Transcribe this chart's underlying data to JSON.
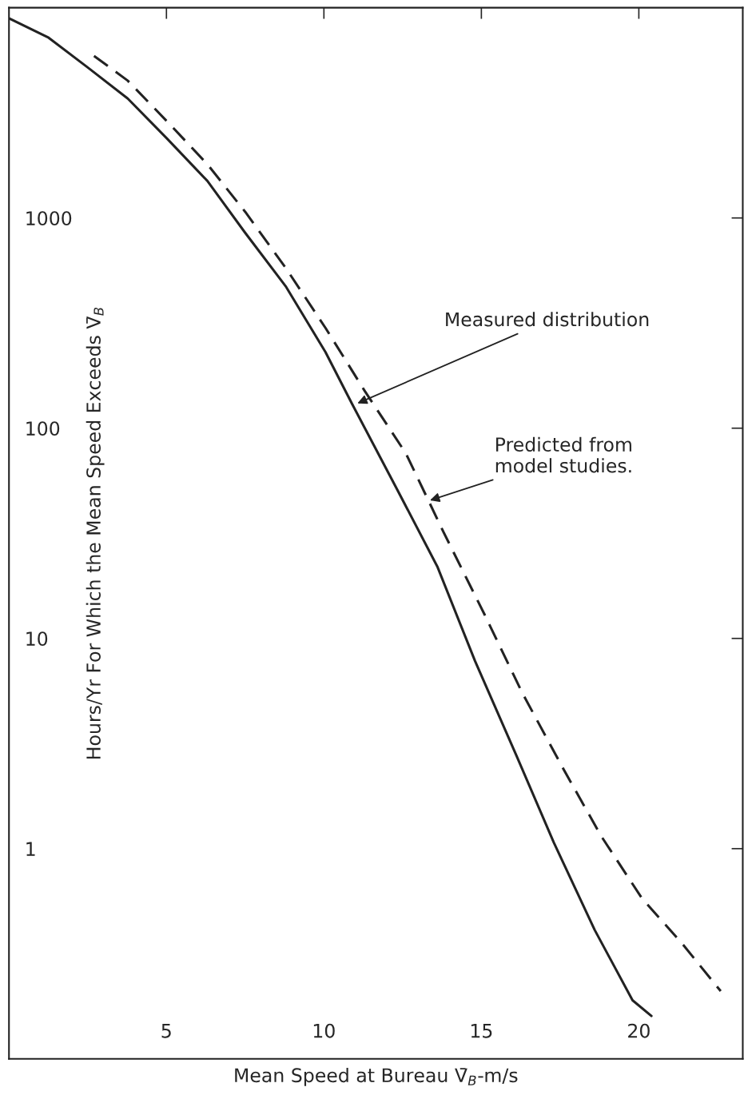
{
  "chart_data": {
    "type": "line",
    "xlabel": "Mean Speed at Bureau V̄$_{B}$-m/s",
    "ylabel": "Hours/Yr For Which the Mean Speed Exceeds V̄$_{B}$",
    "log": "y",
    "xlim": [
      0,
      23.3
    ],
    "ylim": [
      0.1,
      10000
    ],
    "xticks": [
      5,
      10,
      15,
      20
    ],
    "yticks": [
      1,
      10,
      100,
      1000
    ],
    "grid": false,
    "legend": false,
    "marker": "none",
    "series": [
      {
        "color": "#222222",
        "line_style": "solid",
        "x": [
          0,
          1.26,
          2.5,
          3.77,
          5.0,
          6.3,
          7.5,
          8.8,
          10.05,
          10.9,
          12.3,
          13.6,
          14.8,
          16.1,
          17.3,
          18.6,
          19.8,
          20.4
        ],
        "values": [
          8900,
          7200,
          5200,
          3700,
          2400,
          1500,
          850,
          470,
          230,
          130,
          52,
          22,
          7.8,
          2.8,
          1.07,
          0.41,
          0.19,
          0.16
        ]
      },
      {
        "color": "#222222",
        "line_style": "dashed",
        "x": [
          2.7,
          3.77,
          5.0,
          6.3,
          7.5,
          8.8,
          10.05,
          11.3,
          12.6,
          13.8,
          15.1,
          16.3,
          17.6,
          18.8,
          20.1,
          21.4,
          22.6
        ],
        "values": [
          5900,
          4500,
          2900,
          1800,
          1070,
          575,
          300,
          150,
          76,
          32,
          13,
          5.5,
          2.4,
          1.15,
          0.58,
          0.35,
          0.21
        ]
      }
    ],
    "annotations": [
      {
        "text": "Measured distribution",
        "x": 11.0,
        "y": 130
      },
      {
        "text": "Predicted from\nmodel studies.",
        "x": 13.3,
        "y": 45
      }
    ]
  }
}
